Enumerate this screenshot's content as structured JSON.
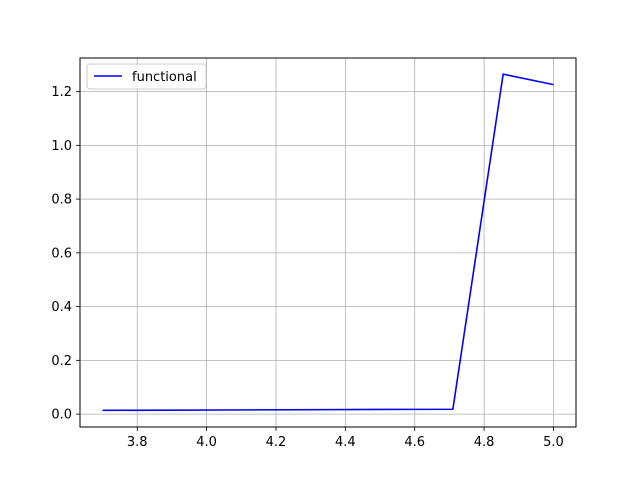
{
  "chart_data": {
    "type": "line",
    "title": "",
    "xlabel": "",
    "ylabel": "",
    "xlim": [
      3.635,
      5.065
    ],
    "ylim": [
      -0.048,
      1.325
    ],
    "x_ticks": [
      3.8,
      4.0,
      4.2,
      4.4,
      4.6,
      4.8,
      5.0
    ],
    "x_tick_labels": [
      "3.8",
      "4.0",
      "4.2",
      "4.4",
      "4.6",
      "4.8",
      "5.0"
    ],
    "y_ticks": [
      0.0,
      0.2,
      0.4,
      0.6,
      0.8,
      1.0,
      1.2
    ],
    "y_tick_labels": [
      "0.0",
      "0.2",
      "0.4",
      "0.6",
      "0.8",
      "1.0",
      "1.2"
    ],
    "grid": true,
    "legend_position": "top-left",
    "series": [
      {
        "name": "functional",
        "color": "#0000ff",
        "x": [
          3.7,
          4.71,
          4.855,
          5.0
        ],
        "y": [
          0.014,
          0.018,
          1.265,
          1.226
        ]
      }
    ]
  }
}
